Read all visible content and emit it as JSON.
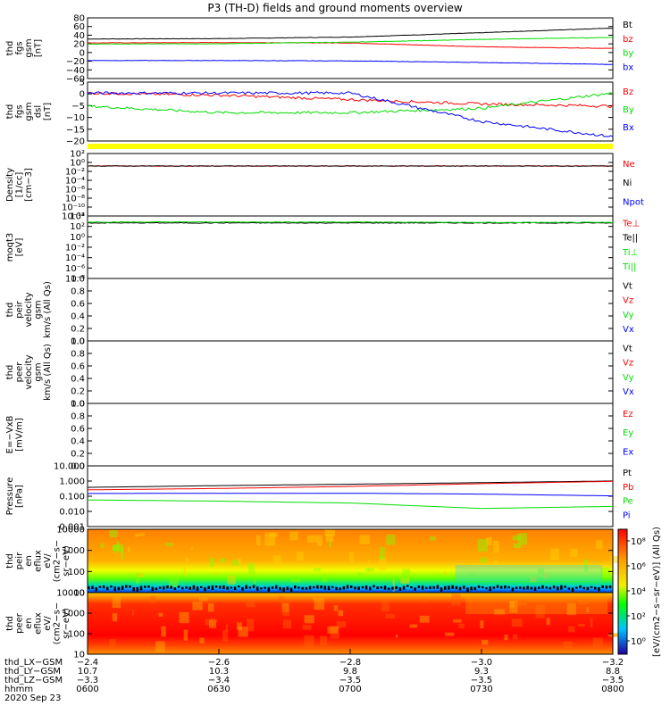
{
  "title": "P3 (TH-D) fields and ground moments overview",
  "colors": {
    "black": "#000000",
    "red": "#ff0000",
    "green": "#00dd00",
    "blue": "#0000ff",
    "yellow": "#ffff00"
  },
  "panels": [
    {
      "id": "fgs_gsm",
      "ylabel": [
        "thd",
        "fgs",
        "gsm",
        "[nT]"
      ],
      "ticks": [
        "80",
        "60",
        "40",
        "20",
        "0",
        "−20",
        "−40",
        "−60"
      ],
      "legend": [
        {
          "text": "Bt",
          "color": "black"
        },
        {
          "text": "bz",
          "color": "red"
        },
        {
          "text": "by",
          "color": "green"
        },
        {
          "text": "bx",
          "color": "blue"
        }
      ]
    },
    {
      "id": "fgs_dsl",
      "ylabel": [
        "thd",
        "fgs",
        "gsm",
        "dsl",
        "[nT]"
      ],
      "ticks": [
        "5",
        "0",
        "−5",
        "−10",
        "−15",
        "−20"
      ],
      "legend": [
        {
          "text": "Bz",
          "color": "red"
        },
        {
          "text": "By",
          "color": "green"
        },
        {
          "text": "Bx",
          "color": "blue"
        }
      ]
    },
    {
      "id": "density",
      "ylabel": [
        "Density",
        "[1/cc]",
        "[cm−3]"
      ],
      "ticks": [
        "10²",
        "10⁰",
        "10⁻²",
        "10⁻⁴",
        "10⁻⁶",
        "10⁻⁸",
        "10⁻¹⁰",
        "10⁻¹²"
      ],
      "legend": [
        {
          "text": "Ne",
          "color": "red"
        },
        {
          "text": "Ni",
          "color": "black"
        },
        {
          "text": "Npot",
          "color": "blue"
        }
      ]
    },
    {
      "id": "temp",
      "ylabel": [
        "moqt3",
        "[eV]"
      ],
      "ticks": [
        "10⁴",
        "10²",
        "10⁰",
        "10⁻²",
        "10⁻⁴",
        "10⁻⁶",
        "10⁻⁸"
      ],
      "legend": [
        {
          "text": "Te⊥",
          "color": "red"
        },
        {
          "text": "Te||",
          "color": "black"
        },
        {
          "text": "Ti⊥",
          "color": "green"
        },
        {
          "text": "Ti||",
          "color": "green"
        }
      ]
    },
    {
      "id": "peir_v",
      "ylabel": [
        "thd",
        "peir",
        "velocity",
        "gsm",
        "km/s (All Qs)"
      ],
      "ticks": [
        "1.0",
        "0.8",
        "0.6",
        "0.4",
        "0.2",
        "0.0"
      ],
      "legend": [
        {
          "text": "Vt",
          "color": "black"
        },
        {
          "text": "Vz",
          "color": "red"
        },
        {
          "text": "Vy",
          "color": "green"
        },
        {
          "text": "Vx",
          "color": "blue"
        }
      ]
    },
    {
      "id": "peer_v",
      "ylabel": [
        "thd",
        "peer",
        "velocity",
        "gsm",
        "km/s (All Qs)"
      ],
      "ticks": [
        "1.0",
        "0.8",
        "0.6",
        "0.4",
        "0.2",
        "0.0"
      ],
      "legend": [
        {
          "text": "Vt",
          "color": "black"
        },
        {
          "text": "Vz",
          "color": "red"
        },
        {
          "text": "Vy",
          "color": "green"
        },
        {
          "text": "Vx",
          "color": "blue"
        }
      ]
    },
    {
      "id": "efield",
      "ylabel": [
        "E=−VxB",
        "[mV/m]"
      ],
      "ticks": [
        "1.0",
        "0.8",
        "0.6",
        "0.4",
        "0.2",
        "0.0"
      ],
      "legend": [
        {
          "text": "Ez",
          "color": "red"
        },
        {
          "text": "Ey",
          "color": "green"
        },
        {
          "text": "Ex",
          "color": "blue"
        }
      ]
    },
    {
      "id": "pressure",
      "ylabel": [
        "Pressure",
        "[nPa]"
      ],
      "ticks": [
        "10.000",
        "1.000",
        "0.100",
        "0.010",
        "0.001"
      ],
      "legend": [
        {
          "text": "Pt",
          "color": "black"
        },
        {
          "text": "Pb",
          "color": "red"
        },
        {
          "text": "Pe",
          "color": "green"
        },
        {
          "text": "Pi",
          "color": "blue"
        }
      ]
    },
    {
      "id": "peir_spec",
      "ylabel": [
        "thd",
        "peir",
        "en",
        "eflux",
        "eV/",
        "(cm2−s−",
        "sr−eV)"
      ],
      "ticks": [
        "10000",
        "1000",
        "100",
        "10"
      ]
    },
    {
      "id": "peer_spec",
      "ylabel": [
        "thd",
        "peer",
        "en",
        "eflux",
        "eV/",
        "(cm2−s−",
        "sr−eV)"
      ],
      "ticks": [
        "10000",
        "1000",
        "100",
        "10"
      ]
    }
  ],
  "colorbar": {
    "ticks": [
      "10⁸",
      "10⁶",
      "10⁴",
      "10²",
      "10⁰"
    ],
    "label": "[eV/(cm2−s−sr−eV)]  (All Qs)"
  },
  "xaxis": {
    "rows": [
      {
        "label": "thd_LX−GSM",
        "values": [
          "−2.4",
          "−2.6",
          "−2.8",
          "−3.0",
          "−3.2"
        ]
      },
      {
        "label": "thd_LY−GSM",
        "values": [
          "10.7",
          "10.3",
          "9.8",
          "9.3",
          "8.8"
        ]
      },
      {
        "label": "thd_LZ−GSM",
        "values": [
          "−3.3",
          "−3.4",
          "−3.5",
          "−3.5",
          "−3.5"
        ]
      },
      {
        "label": "hhmm",
        "values": [
          "0600",
          "0630",
          "0700",
          "0730",
          "0800"
        ]
      }
    ],
    "date": "2020 Sep 23"
  },
  "chart_data": [
    {
      "type": "line",
      "panel": "fgs_gsm",
      "x": [
        "0600",
        "0630",
        "0700",
        "0730",
        "0800"
      ],
      "ylim": [
        -65,
        90
      ],
      "series": [
        {
          "name": "Bt",
          "values": [
            36,
            37,
            41,
            52,
            64
          ]
        },
        {
          "name": "bz",
          "values": [
            26,
            27,
            26,
            16,
            12
          ]
        },
        {
          "name": "by",
          "values": [
            23,
            24,
            28,
            35,
            40
          ]
        },
        {
          "name": "bx",
          "values": [
            -19,
            -19,
            -20,
            -24,
            -29
          ]
        }
      ]
    },
    {
      "type": "line",
      "panel": "fgs_dsl",
      "x": [
        "0600",
        "0630",
        "0700",
        "0730",
        "0800"
      ],
      "ylim": [
        -22,
        5
      ],
      "series": [
        {
          "name": "Bz",
          "values": [
            0,
            -1,
            -3,
            -5,
            -6
          ]
        },
        {
          "name": "By",
          "values": [
            -6,
            -9,
            -9,
            -7,
            0
          ]
        },
        {
          "name": "Bx",
          "values": [
            0,
            0,
            0,
            -13,
            -20
          ]
        }
      ]
    },
    {
      "type": "line",
      "panel": "density",
      "ylim": [
        -12,
        3
      ],
      "series": [
        {
          "name": "Ne",
          "values": [
            0,
            0,
            0,
            0,
            0
          ]
        },
        {
          "name": "Ni",
          "values": [
            0,
            0,
            0,
            0,
            0
          ]
        }
      ]
    },
    {
      "type": "line",
      "panel": "temp",
      "ylim": [
        -9,
        4.5
      ],
      "series": [
        {
          "name": "Te||",
          "values": [
            3,
            3,
            3,
            3,
            3
          ]
        },
        {
          "name": "Ti||",
          "values": [
            3.2,
            3.2,
            3.2,
            3.1,
            3.1
          ]
        }
      ]
    },
    {
      "type": "line",
      "panel": "pressure",
      "ylim": [
        -3,
        1.3
      ],
      "series": [
        {
          "name": "Pt",
          "values": [
            0.6,
            0.8,
            1.0,
            1.3,
            1.7
          ]
        },
        {
          "name": "Pb",
          "values": [
            0.4,
            0.5,
            0.7,
            1.1,
            1.6
          ]
        },
        {
          "name": "Pi",
          "values": [
            0.22,
            0.23,
            0.23,
            0.2,
            0.15
          ]
        },
        {
          "name": "Pe",
          "values": [
            0.07,
            0.06,
            0.05,
            0.02,
            0.03
          ]
        }
      ]
    },
    {
      "type": "heatmap",
      "panel": "peir_spec",
      "ylim": [
        5,
        15000
      ]
    },
    {
      "type": "heatmap",
      "panel": "peer_spec",
      "ylim": [
        5,
        15000
      ]
    }
  ]
}
